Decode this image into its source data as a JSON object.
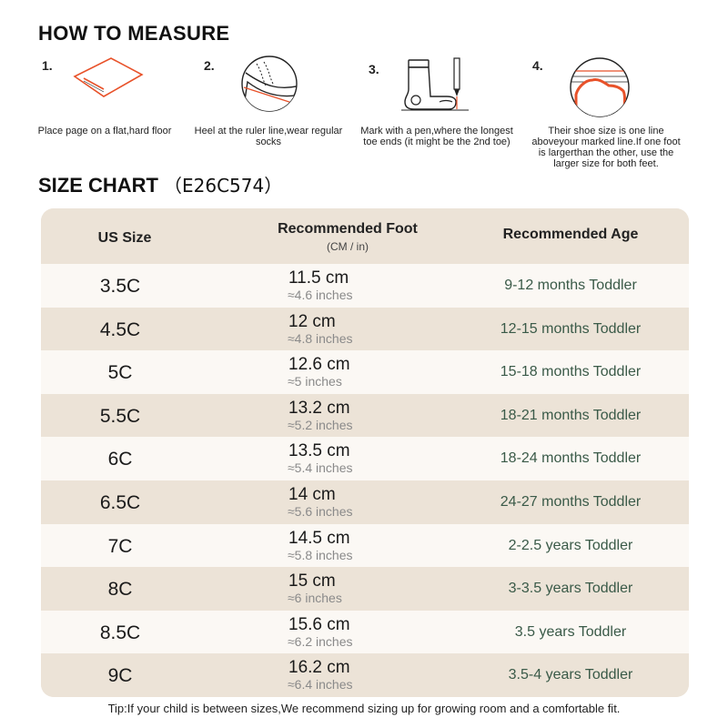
{
  "how_to_measure": {
    "title": "HOW TO MEASURE",
    "steps": [
      {
        "num": "1.",
        "text": "Place page on a flat,hard floor",
        "icon": "paper-on-floor-icon"
      },
      {
        "num": "2.",
        "text": "Heel at the ruler line,wear regular socks",
        "icon": "heel-on-line-icon"
      },
      {
        "num": "3.",
        "text": "Mark with a pen,where the longest toe ends (it might be the 2nd toe)",
        "icon": "sock-and-pen-icon"
      },
      {
        "num": "4.",
        "text": "Their shoe size is one line aboveyour marked line.If one foot is largerthan the other, use the larger size for both feet.",
        "icon": "toe-mark-icon"
      }
    ]
  },
  "size_chart": {
    "title": "SIZE CHART",
    "code": "（E26C574）",
    "headers": {
      "us_size": "US Size",
      "foot": "Recommended Foot",
      "foot_sub": "(CM / in)",
      "age": "Recommended Age"
    },
    "rows": [
      {
        "size": "3.5C",
        "cm": "11.5 cm",
        "inches": "≈4.6 inches",
        "age": "9-12 months Toddler"
      },
      {
        "size": "4.5C",
        "cm": "12 cm",
        "inches": "≈4.8 inches",
        "age": "12-15 months Toddler"
      },
      {
        "size": "5C",
        "cm": "12.6 cm",
        "inches": "≈5 inches",
        "age": "15-18 months Toddler"
      },
      {
        "size": "5.5C",
        "cm": "13.2 cm",
        "inches": "≈5.2 inches",
        "age": "18-21 months Toddler"
      },
      {
        "size": "6C",
        "cm": "13.5 cm",
        "inches": "≈5.4 inches",
        "age": "18-24 months Toddler"
      },
      {
        "size": "6.5C",
        "cm": "14 cm",
        "inches": "≈5.6 inches",
        "age": "24-27 months Toddler"
      },
      {
        "size": "7C",
        "cm": "14.5 cm",
        "inches": "≈5.8 inches",
        "age": "2-2.5 years Toddler"
      },
      {
        "size": "8C",
        "cm": "15 cm",
        "inches": "≈6 inches",
        "age": "3-3.5 years Toddler"
      },
      {
        "size": "8.5C",
        "cm": "15.6 cm",
        "inches": "≈6.2 inches",
        "age": "3.5 years Toddler"
      },
      {
        "size": "9C",
        "cm": "16.2 cm",
        "inches": "≈6.4 inches",
        "age": "3.5-4 years Toddler"
      }
    ]
  },
  "tip": "Tip:If your child is between sizes,We recommend sizing up for growing room and a comfortable fit.",
  "colors": {
    "accent": "#e8522a",
    "table_dark": "#ece3d7",
    "table_light": "#fbf8f4",
    "age_text": "#3a5a48"
  }
}
